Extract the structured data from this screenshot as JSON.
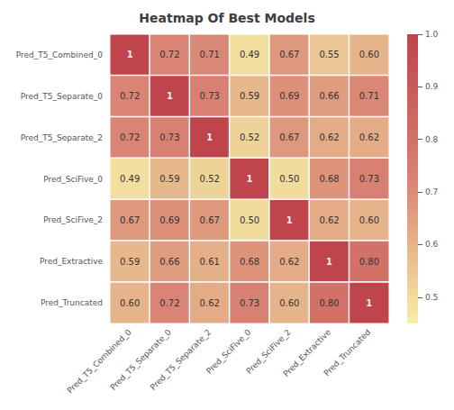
{
  "chart_data": {
    "type": "heatmap",
    "title": "Heatmap Of Best Models",
    "categories": [
      "Pred_T5_Combined_0",
      "Pred_T5_Separate_0",
      "Pred_T5_Separate_2",
      "Pred_SciFive_0",
      "Pred_SciFive_2",
      "Pred_Extractive",
      "Pred_Truncated"
    ],
    "values": [
      [
        1.0,
        0.72,
        0.71,
        0.49,
        0.67,
        0.55,
        0.6
      ],
      [
        0.72,
        1.0,
        0.73,
        0.59,
        0.69,
        0.66,
        0.71
      ],
      [
        0.72,
        0.73,
        1.0,
        0.52,
        0.67,
        0.62,
        0.62
      ],
      [
        0.49,
        0.59,
        0.52,
        1.0,
        0.5,
        0.68,
        0.73
      ],
      [
        0.67,
        0.69,
        0.67,
        0.5,
        1.0,
        0.62,
        0.6
      ],
      [
        0.59,
        0.66,
        0.61,
        0.68,
        0.62,
        1.0,
        0.8
      ],
      [
        0.6,
        0.72,
        0.62,
        0.73,
        0.6,
        0.8,
        1.0
      ]
    ],
    "value_labels": [
      [
        "1",
        "0.72",
        "0.71",
        "0.49",
        "0.67",
        "0.55",
        "0.60"
      ],
      [
        "0.72",
        "1",
        "0.73",
        "0.59",
        "0.69",
        "0.66",
        "0.71"
      ],
      [
        "0.72",
        "0.73",
        "1",
        "0.52",
        "0.67",
        "0.62",
        "0.62"
      ],
      [
        "0.49",
        "0.59",
        "0.52",
        "1",
        "0.50",
        "0.68",
        "0.73"
      ],
      [
        "0.67",
        "0.69",
        "0.67",
        "0.50",
        "1",
        "0.62",
        "0.60"
      ],
      [
        "0.59",
        "0.66",
        "0.61",
        "0.68",
        "0.62",
        "1",
        "0.80"
      ],
      [
        "0.60",
        "0.72",
        "0.62",
        "0.73",
        "0.60",
        "0.80",
        "1"
      ]
    ],
    "data_labels": true,
    "colorbar_range": [
      0.45,
      1.0
    ],
    "colorbar_ticks": [
      0.5,
      0.6,
      0.7,
      0.8,
      0.9,
      {
        "value": 1.0,
        "label": "1.0"
      }
    ]
  }
}
